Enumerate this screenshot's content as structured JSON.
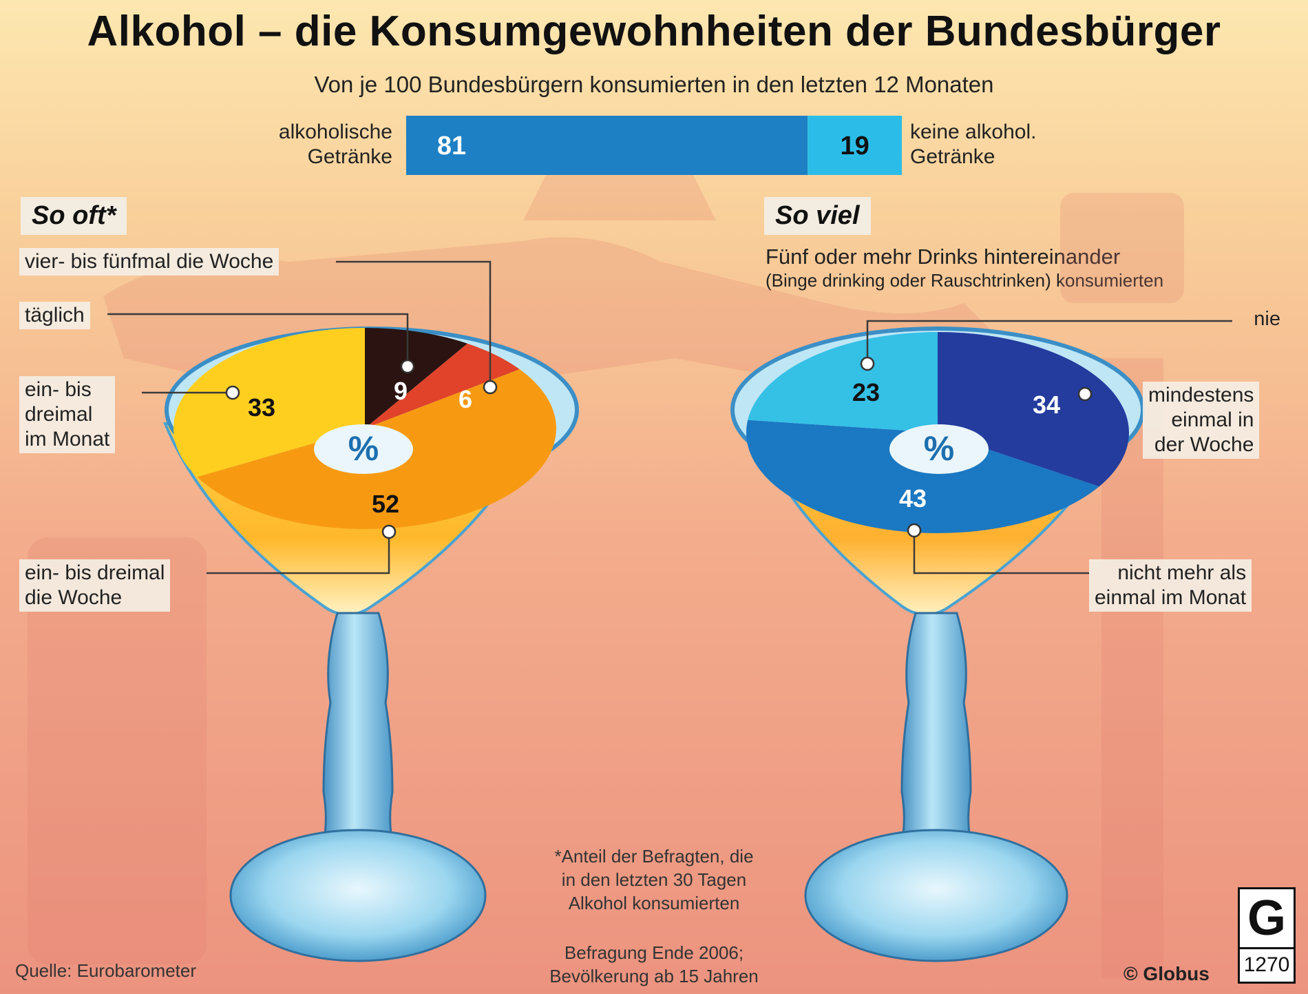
{
  "title": "Alkohol – die Konsumgewohnheiten der Bundesbürger",
  "subtitle": "Von je 100 Bundesbürgern konsumierten in den letzten 12 Monaten",
  "chart_data": [
    {
      "type": "bar",
      "stacked": true,
      "categories": [
        "alkoholische Getränke",
        "keine alkohol. Getränke"
      ],
      "values": [
        81,
        19
      ],
      "colors": [
        "#1d7fc4",
        "#2bbde8"
      ],
      "left_label_lines": [
        "alkoholische",
        "Getränke"
      ],
      "right_label_lines": [
        "keine alkohol.",
        "Getränke"
      ]
    },
    {
      "type": "pie",
      "title": "So oft*",
      "unit": "%",
      "slices": [
        {
          "label": "täglich",
          "value": 9,
          "color": "#2a1310",
          "text_color": "#ffffff"
        },
        {
          "label": "vier- bis fünfmal die Woche",
          "value": 6,
          "color": "#e0432a",
          "text_color": "#ffffff"
        },
        {
          "label": "ein- bis dreimal die Woche",
          "value": 52,
          "color": "#f79a12",
          "text_color": "#111111"
        },
        {
          "label": "ein- bis dreimal im Monat",
          "value": 33,
          "color": "#ffcf1f",
          "text_color": "#111111"
        }
      ]
    },
    {
      "type": "pie",
      "title": "So viel",
      "subtitle_lines": [
        "Fünf oder mehr Drinks hintereinander",
        "(Binge drinking oder Rauschtrinken) konsumierten"
      ],
      "unit": "%",
      "slices": [
        {
          "label": "mindestens einmal in der Woche",
          "value": 34,
          "color": "#243c9e",
          "text_color": "#ffffff"
        },
        {
          "label": "nicht mehr als einmal im Monat",
          "value": 43,
          "color": "#1b78c2",
          "text_color": "#ffffff"
        },
        {
          "label": "nie",
          "value": 23,
          "color": "#35c0e6",
          "text_color": "#111111"
        }
      ]
    }
  ],
  "left_labels": {
    "four_five": "vier- bis fünfmal die Woche",
    "daily": "täglich",
    "monthly_lines": [
      "ein- bis",
      "dreimal",
      "im Monat"
    ],
    "weekly_lines": [
      "ein- bis dreimal",
      "die Woche"
    ]
  },
  "right_labels": {
    "never": "nie",
    "weekly_lines": [
      "mindestens",
      "einmal in",
      "der Woche"
    ],
    "monthly_lines": [
      "nicht mehr als",
      "einmal im Monat"
    ]
  },
  "footnote_lines": [
    "*Anteil der Befragten, die",
    "in den letzten 30 Tagen",
    "Alkohol konsumierten"
  ],
  "survey_lines": [
    "Befragung Ende 2006;",
    "Bevölkerung ab 15 Jahren"
  ],
  "source": "Quelle: Eurobarometer",
  "copyright": "© Globus",
  "logo": {
    "letter": "G",
    "number": "1270"
  }
}
